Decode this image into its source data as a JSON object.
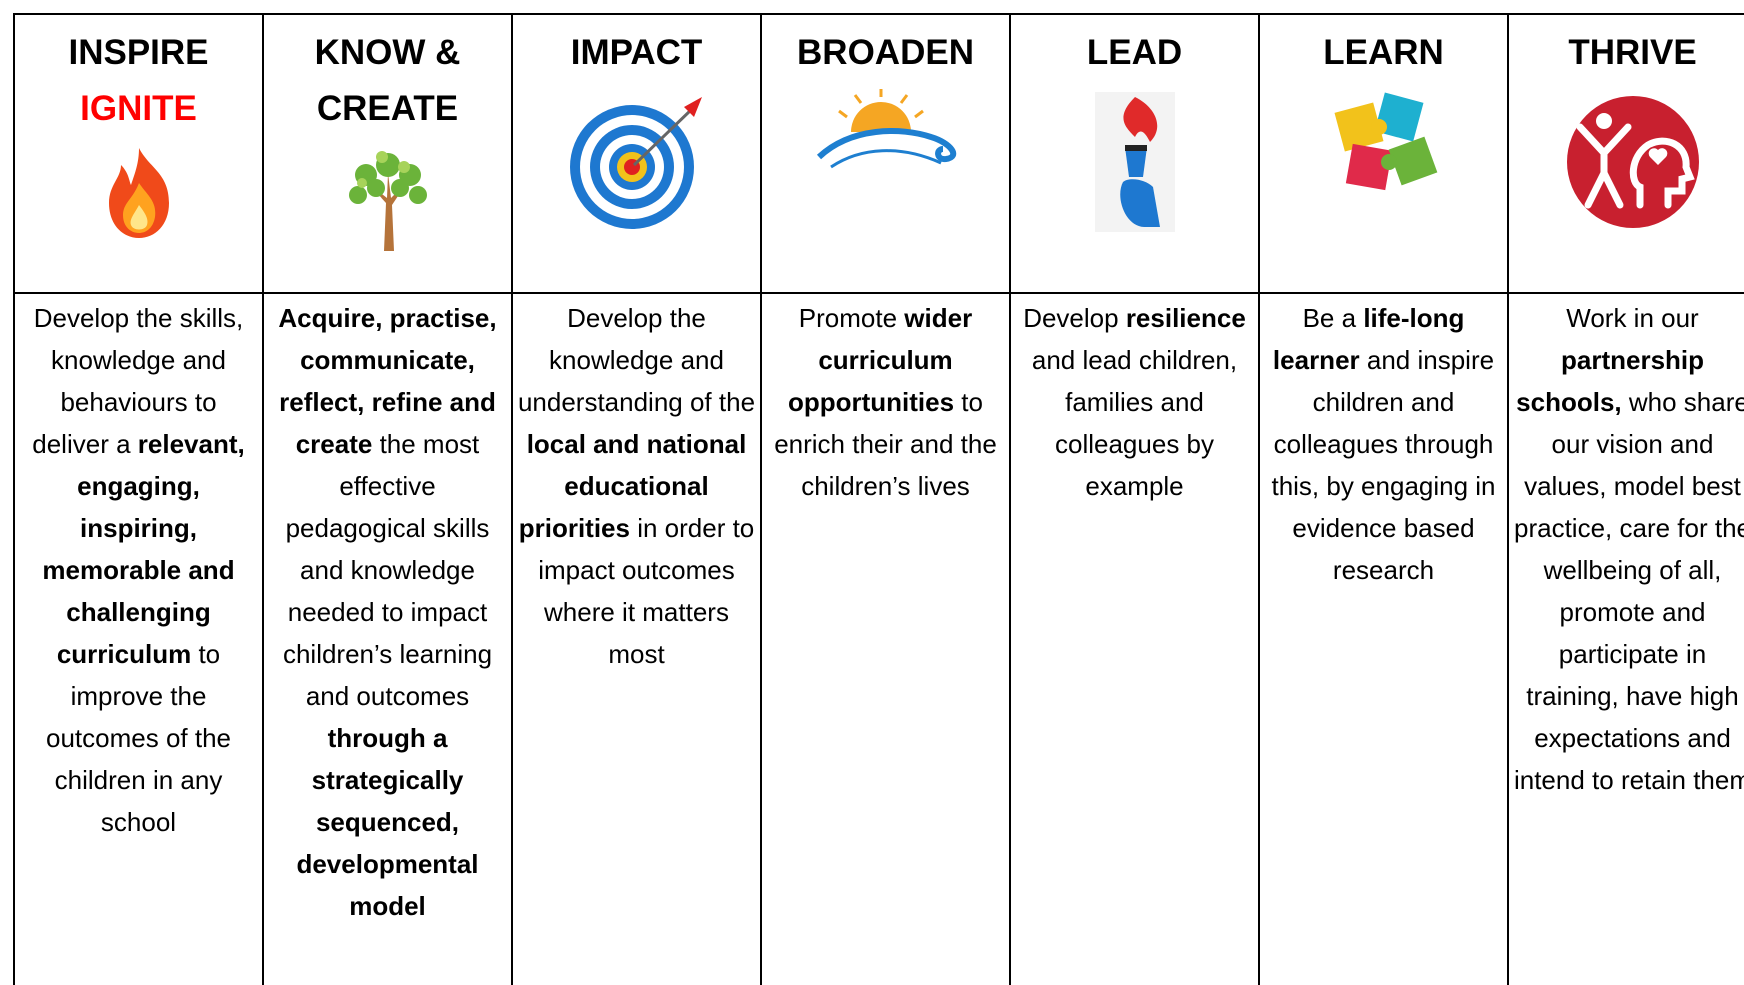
{
  "columns": [
    {
      "title": [
        {
          "text": "INSPIRE",
          "color": "#000000"
        },
        {
          "text": "IGNITE",
          "color": "#ff0000"
        }
      ],
      "description": [
        {
          "text": "Develop the skills, knowledge and behaviours to deliver a ",
          "bold": false
        },
        {
          "text": "relevant, engaging, inspiring, memorable and challenging curriculum",
          "bold": true
        },
        {
          "text": " to improve the outcomes of the children in any school",
          "bold": false
        }
      ]
    },
    {
      "title": [
        {
          "text": "KNOW &",
          "color": "#000000"
        },
        {
          "text": "CREATE",
          "color": "#000000"
        }
      ],
      "description": [
        {
          "text": "Acquire, practise, communicate, reflect, refine and create",
          "bold": true
        },
        {
          "text": " the most effective pedagogical skills and knowledge needed to impact children’s learning and outcomes ",
          "bold": false
        },
        {
          "text": "through a strategically sequenced, developmental model",
          "bold": true
        }
      ]
    },
    {
      "title": [
        {
          "text": "IMPACT",
          "color": "#000000"
        }
      ],
      "description": [
        {
          "text": "Develop the knowledge and understanding of the ",
          "bold": false
        },
        {
          "text": "local and national educational priorities",
          "bold": true
        },
        {
          "text": " in order to impact outcomes where it matters most",
          "bold": false
        }
      ]
    },
    {
      "title": [
        {
          "text": "BROADEN",
          "color": "#000000"
        }
      ],
      "description": [
        {
          "text": "Promote ",
          "bold": false
        },
        {
          "text": "wider curriculum opportunities",
          "bold": true
        },
        {
          "text": " to enrich their and the children’s lives",
          "bold": false
        }
      ]
    },
    {
      "title": [
        {
          "text": "LEAD",
          "color": "#000000"
        }
      ],
      "description": [
        {
          "text": "Develop ",
          "bold": false
        },
        {
          "text": "resilience",
          "bold": true
        },
        {
          "text": " and lead children, families and colleagues by example",
          "bold": false
        }
      ]
    },
    {
      "title": [
        {
          "text": "LEARN",
          "color": "#000000"
        }
      ],
      "description": [
        {
          "text": "Be a ",
          "bold": false
        },
        {
          "text": "life-long learner",
          "bold": true
        },
        {
          "text": " and inspire children and colleagues through this, by engaging in evidence based research",
          "bold": false
        }
      ]
    },
    {
      "title": [
        {
          "text": "THRIVE",
          "color": "#000000"
        }
      ],
      "description": [
        {
          "text": "Work in our ",
          "bold": false
        },
        {
          "text": "partnership schools,",
          "bold": true
        },
        {
          "text": " who share our vision and values, model best practice, care for the wellbeing of all, promote and participate in training, have high expectations and intend to retain them",
          "bold": false
        }
      ]
    }
  ]
}
